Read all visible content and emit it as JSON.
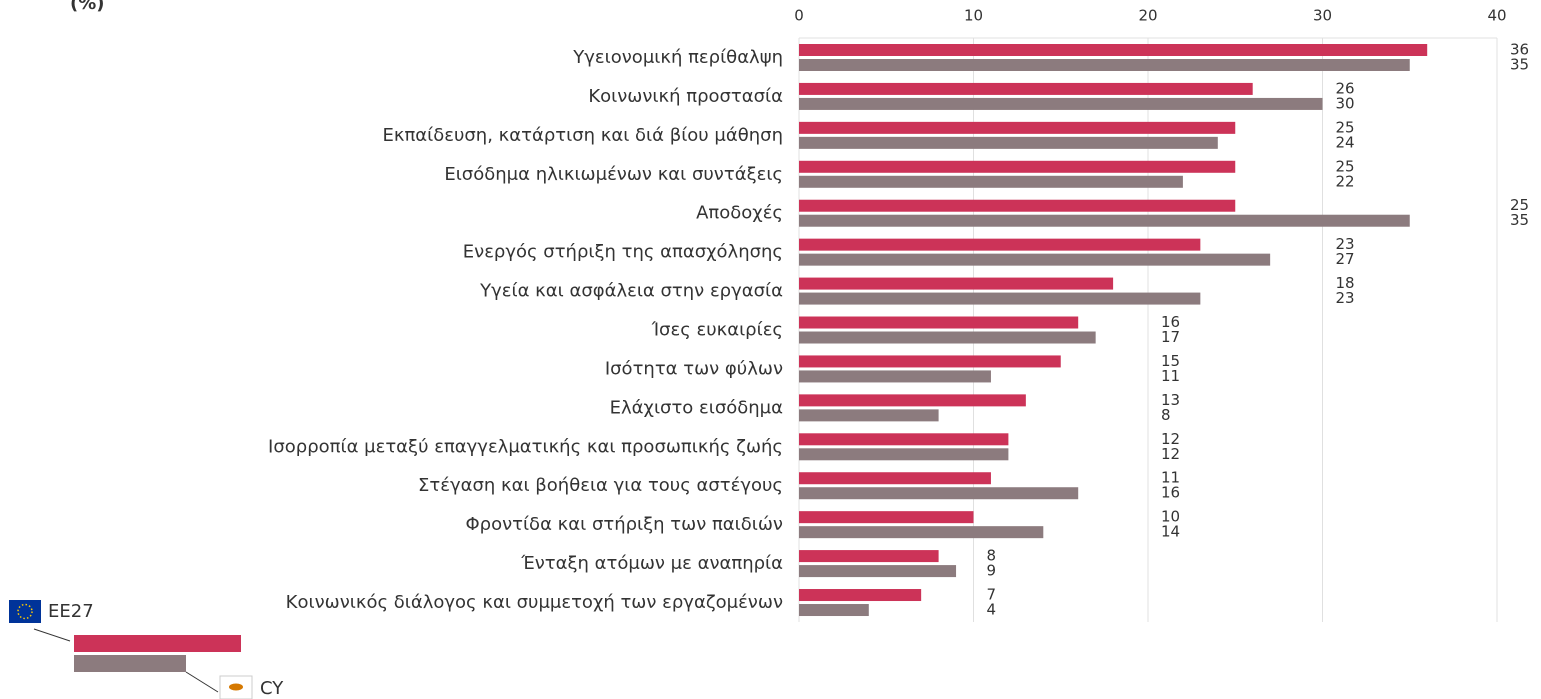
{
  "chart_data": {
    "type": "bar",
    "orientation": "horizontal",
    "title": "(%)",
    "categories": [
      "Υγειονομική περίθαλψη",
      "Κοινωνική προστασία",
      "Εκπαίδευση, κατάρτιση και διά βίου μάθηση",
      "Εισόδημα ηλικιωμένων και συντάξεις",
      "Αποδοχές",
      "Ενεργός στήριξη της απασχόλησης",
      "Υγεία και ασφάλεια στην εργασία",
      "Ίσες ευκαιρίες",
      "Ισότητα των φύλων",
      "Ελάχιστο εισόδημα",
      "Ισορροπία μεταξύ επαγγελματικής και προσωπικής ζωής",
      "Στέγαση και βοήθεια για τους αστέγους",
      "Φροντίδα και στήριξη των παιδιών",
      "Ένταξη ατόμων με αναπηρία",
      "Κοινωνικός διάλογος και συμμετοχή των εργαζομένων"
    ],
    "series": [
      {
        "name": "EE27",
        "color": "#cc3358",
        "values": [
          36,
          26,
          25,
          25,
          25,
          23,
          18,
          16,
          15,
          13,
          12,
          11,
          10,
          8,
          7
        ]
      },
      {
        "name": "CY",
        "color": "#8c7b7e",
        "values": [
          35,
          30,
          24,
          22,
          35,
          27,
          23,
          17,
          11,
          8,
          12,
          16,
          14,
          9,
          4
        ]
      }
    ],
    "xlim": [
      0,
      40
    ],
    "xticks": [
      0,
      10,
      20,
      30,
      40
    ],
    "grid": true
  }
}
